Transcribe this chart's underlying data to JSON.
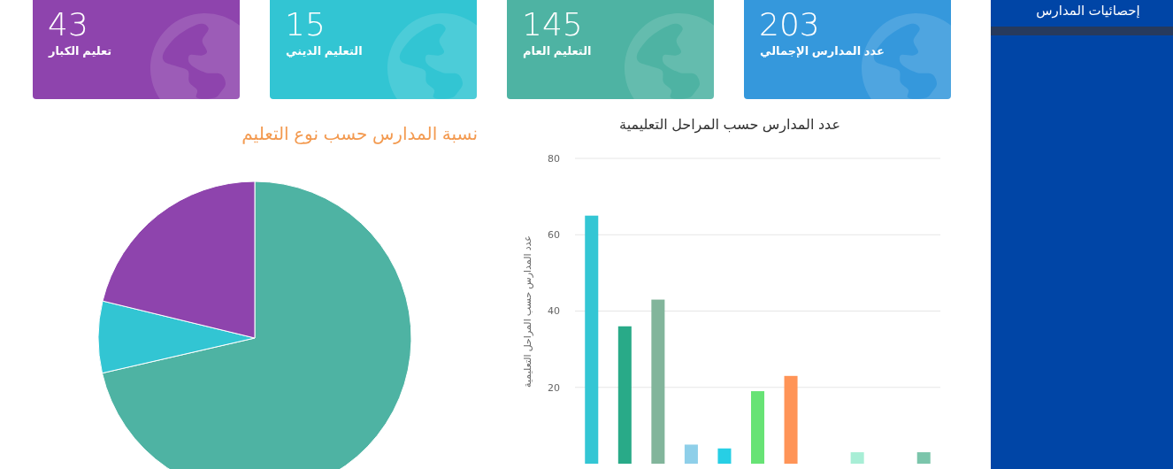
{
  "chart_data": [
    {
      "type": "other",
      "categories": [
        "تعليم الكبار",
        "التعليم الديني",
        "التعليم العام",
        "عدد المدارس الإجمالي"
      ],
      "values": [
        43,
        15,
        145,
        203
      ],
      "colors": [
        "#8e44ad",
        "#32c5d3",
        "#4eb3a3",
        "#3598dc"
      ],
      "data_labels": true,
      "annotations": [
        "إحصائيات المدارس"
      ]
    },
    {
      "type": "pie",
      "title": "نسبة المدارس حسب نوع التعليم",
      "categories": [
        null,
        null,
        null
      ],
      "values": [
        71.4,
        7.4,
        21.2
      ],
      "colors": [
        "#4eb3a3",
        "#32c5d3",
        "#8e44ad"
      ]
    },
    {
      "type": "bar",
      "title": "عدد المدارس حسب المراحل التعليمية",
      "ylabel": "عدد المدارس حسب المراحل التعليمية",
      "categories": [
        null,
        null,
        null,
        null,
        null,
        null,
        null,
        null,
        null,
        null,
        null
      ],
      "values": [
        65,
        36,
        43,
        5,
        4,
        19,
        23,
        null,
        3,
        null,
        3
      ],
      "colors": [
        "#33c6d4",
        "#29aa88",
        "#82b59b",
        "#8ecfe9",
        "#27cfe5",
        "#67e375",
        "#ff9457",
        null,
        "#a8eed6",
        null,
        "#7bc5ab"
      ],
      "ylim": [
        0,
        80
      ],
      "yticks": [
        20,
        40,
        60,
        80
      ],
      "grid": "y",
      "tick_labels": "y"
    }
  ]
}
